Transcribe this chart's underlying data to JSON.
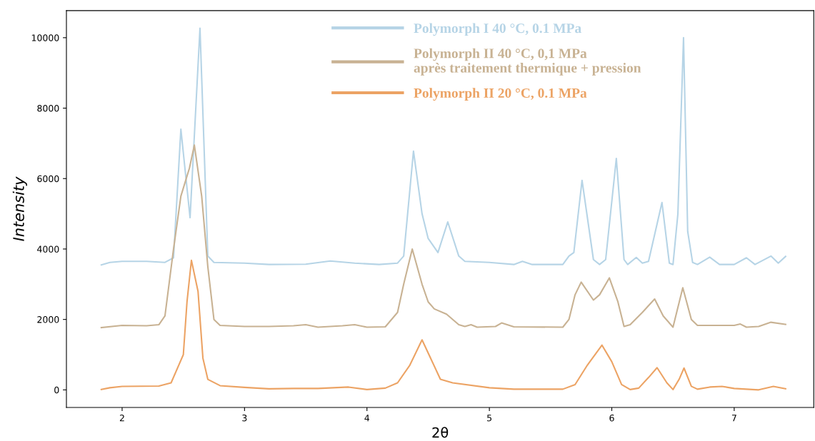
{
  "chart_data": {
    "type": "line",
    "xlabel": "2θ",
    "ylabel": "Intensity",
    "xlim": [
      1.545,
      7.65
    ],
    "ylim": [
      -500,
      10770
    ],
    "xticks": [
      2,
      3,
      4,
      5,
      6,
      7
    ],
    "yticks": [
      0,
      2000,
      4000,
      6000,
      8000,
      10000
    ],
    "grid": false,
    "legend": "top",
    "marker": "none",
    "line_style": "solid",
    "series": [
      {
        "name": "Polymorph I 40 °C, 0.1 MPa",
        "color": "#b6d4e6",
        "x": [
          1.83,
          1.9,
          2.0,
          2.2,
          2.35,
          2.42,
          2.48,
          2.555,
          2.636,
          2.7,
          2.75,
          3.0,
          3.2,
          3.5,
          3.7,
          3.9,
          4.1,
          4.25,
          4.3,
          4.38,
          4.45,
          4.5,
          4.58,
          4.66,
          4.75,
          4.8,
          5.0,
          5.2,
          5.27,
          5.35,
          5.6,
          5.65,
          5.69,
          5.757,
          5.85,
          5.9,
          5.95,
          6.037,
          6.1,
          6.13,
          6.2,
          6.25,
          6.3,
          6.41,
          6.47,
          6.5,
          6.54,
          6.586,
          6.62,
          6.66,
          6.7,
          6.8,
          6.88,
          7.0,
          7.1,
          7.17,
          7.3,
          7.36,
          7.42
        ],
        "values": [
          3550,
          3620,
          3650,
          3650,
          3620,
          3750,
          7400,
          4890,
          10270,
          3800,
          3620,
          3600,
          3560,
          3570,
          3660,
          3600,
          3560,
          3600,
          3800,
          6780,
          5000,
          4300,
          3900,
          4770,
          3800,
          3650,
          3620,
          3560,
          3650,
          3560,
          3560,
          3800,
          3900,
          5950,
          3700,
          3560,
          3700,
          6570,
          3700,
          3560,
          3760,
          3600,
          3650,
          5320,
          3600,
          3560,
          5000,
          10000,
          4500,
          3620,
          3560,
          3770,
          3560,
          3560,
          3750,
          3560,
          3800,
          3600,
          3790
        ]
      },
      {
        "name": "Polymorph II 40 °C, 0,1 MPa\naprès traitement thermique + pression",
        "color": "#c8b293",
        "x": [
          1.83,
          2.0,
          2.2,
          2.3,
          2.35,
          2.42,
          2.48,
          2.55,
          2.59,
          2.65,
          2.7,
          2.75,
          2.8,
          3.0,
          3.2,
          3.4,
          3.5,
          3.6,
          3.8,
          3.9,
          4.0,
          4.15,
          4.25,
          4.3,
          4.37,
          4.45,
          4.5,
          4.55,
          4.65,
          4.75,
          4.8,
          4.85,
          4.9,
          5.05,
          5.1,
          5.2,
          5.6,
          5.65,
          5.7,
          5.75,
          5.85,
          5.9,
          5.98,
          6.05,
          6.1,
          6.15,
          6.25,
          6.35,
          6.42,
          6.5,
          6.53,
          6.58,
          6.65,
          6.7,
          7.0,
          7.05,
          7.1,
          7.2,
          7.3,
          7.42
        ],
        "values": [
          1770,
          1830,
          1820,
          1850,
          2100,
          4000,
          5500,
          6300,
          6950,
          5500,
          3500,
          2000,
          1830,
          1800,
          1800,
          1820,
          1850,
          1780,
          1820,
          1850,
          1780,
          1790,
          2200,
          3000,
          4000,
          3000,
          2500,
          2300,
          2150,
          1850,
          1800,
          1850,
          1780,
          1800,
          1900,
          1790,
          1780,
          2000,
          2700,
          3060,
          2550,
          2700,
          3180,
          2500,
          1800,
          1850,
          2200,
          2580,
          2100,
          1780,
          2200,
          2900,
          2000,
          1830,
          1830,
          1870,
          1780,
          1800,
          1920,
          1860
        ]
      },
      {
        "name": "Polymorph II 20 °C, 0.1 MPa",
        "color": "#eca364",
        "x": [
          1.83,
          1.9,
          2.0,
          2.3,
          2.4,
          2.5,
          2.53,
          2.566,
          2.62,
          2.66,
          2.7,
          2.8,
          3.0,
          3.2,
          3.4,
          3.6,
          3.85,
          4.0,
          4.15,
          4.25,
          4.35,
          4.45,
          4.52,
          4.6,
          4.7,
          5.0,
          5.2,
          5.6,
          5.7,
          5.8,
          5.92,
          6.0,
          6.08,
          6.15,
          6.22,
          6.3,
          6.37,
          6.45,
          6.5,
          6.55,
          6.59,
          6.65,
          6.7,
          6.8,
          6.9,
          7.0,
          7.2,
          7.32,
          7.42
        ],
        "values": [
          10,
          60,
          100,
          110,
          200,
          1000,
          2500,
          3680,
          2800,
          900,
          300,
          120,
          70,
          30,
          40,
          40,
          80,
          10,
          50,
          200,
          700,
          1420,
          900,
          300,
          200,
          60,
          20,
          20,
          150,
          700,
          1270,
          800,
          150,
          10,
          50,
          350,
          630,
          200,
          10,
          300,
          620,
          100,
          20,
          80,
          100,
          40,
          0,
          100,
          30
        ]
      }
    ]
  }
}
